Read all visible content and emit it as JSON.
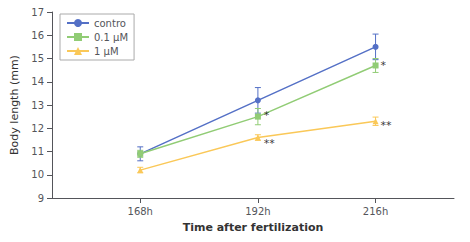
{
  "chart_data": {
    "type": "line",
    "xlabel": "Time after fertilization",
    "ylabel": "Body length (mm)",
    "x": [
      168,
      192,
      216
    ],
    "xlim": [
      150,
      232
    ],
    "xticks": [
      {
        "value": 168,
        "label": "168h"
      },
      {
        "value": 192,
        "label": "192h"
      },
      {
        "value": 216,
        "label": "216h"
      }
    ],
    "ylim": [
      9,
      17
    ],
    "yticks": [
      9,
      10,
      11,
      12,
      13,
      14,
      15,
      16,
      17
    ],
    "grid": false,
    "legend": "upper left",
    "line_style": "solid",
    "series": [
      {
        "name": "contro",
        "marker": "circle",
        "values": [
          10.9,
          13.2,
          15.5
        ],
        "yerr": [
          0.3,
          0.55,
          0.55
        ]
      },
      {
        "name": "0.1 μM",
        "marker": "square",
        "values": [
          10.9,
          12.5,
          14.7
        ],
        "yerr": [
          0.15,
          0.35,
          0.3
        ]
      },
      {
        "name": "1 μM",
        "marker": "triangle",
        "values": [
          10.2,
          11.6,
          12.3
        ],
        "yerr": [
          0.12,
          0.12,
          0.18
        ]
      }
    ],
    "annotations": [
      {
        "text": "*",
        "x": 193,
        "y": 12.55
      },
      {
        "text": "**",
        "x": 193,
        "y": 11.35
      },
      {
        "text": "*",
        "x": 216.8,
        "y": 14.72
      },
      {
        "text": "**",
        "x": 216.8,
        "y": 12.1
      }
    ]
  }
}
